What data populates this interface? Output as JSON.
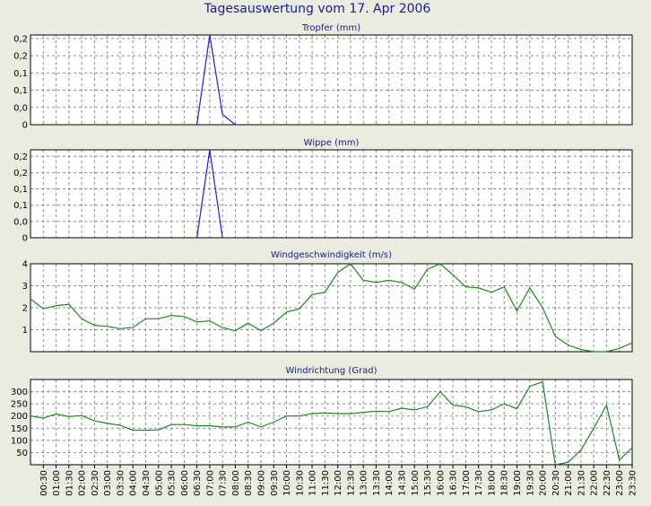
{
  "title": "Tagesauswertung vom 17. Apr 2006",
  "colors": {
    "background": "#e9ecdf",
    "rain": "#1f1fd0",
    "wind": "#1a8a1a"
  },
  "x_labels": [
    "00:30",
    "01:00",
    "01:30",
    "02:00",
    "02:30",
    "03:00",
    "03:30",
    "04:00",
    "04:30",
    "05:00",
    "05:30",
    "06:00",
    "06:30",
    "07:00",
    "07:30",
    "08:00",
    "08:30",
    "09:00",
    "09:30",
    "10:00",
    "10:30",
    "11:00",
    "11:30",
    "12:00",
    "12:30",
    "13:00",
    "13:30",
    "14:00",
    "14:30",
    "15:00",
    "15:30",
    "16:00",
    "16:30",
    "17:00",
    "17:30",
    "18:00",
    "18:30",
    "19:00",
    "19:30",
    "20:00",
    "20:30",
    "21:00",
    "21:30",
    "22:00",
    "22:30",
    "23:00",
    "23:30"
  ],
  "chart_data": [
    {
      "type": "line",
      "title": "Tropfer (mm)",
      "ylim": [
        0,
        0.26
      ],
      "ytick_values": [
        0,
        0.05,
        0.1,
        0.15,
        0.2,
        0.25
      ],
      "ytick_labels": [
        "0",
        "0,0",
        "0,1",
        "0,1",
        "0,2",
        "0,2"
      ],
      "series": [
        {
          "color": "#1f1fd0",
          "x": [
            "06:30",
            "07:00",
            "07:30",
            "08:00"
          ],
          "y": [
            0,
            0.26,
            0.03,
            0
          ]
        }
      ]
    },
    {
      "type": "line",
      "title": "Wippe (mm)",
      "ylim": [
        0,
        0.27
      ],
      "ytick_values": [
        0,
        0.05,
        0.1,
        0.15,
        0.2,
        0.25
      ],
      "ytick_labels": [
        "0",
        "0,0",
        "0,1",
        "0,1",
        "0,2",
        "0,2"
      ],
      "series": [
        {
          "color": "#1f1fd0",
          "x": [
            "06:30",
            "07:00",
            "07:30"
          ],
          "y": [
            0,
            0.27,
            0
          ]
        }
      ]
    },
    {
      "type": "line",
      "title": "Windgeschwindigkeit (m/s)",
      "ylim": [
        0,
        4
      ],
      "ytick_values": [
        1,
        2,
        3,
        4
      ],
      "ytick_labels": [
        "1",
        "2",
        "3",
        "4"
      ],
      "series": [
        {
          "color": "#1a8a1a",
          "x": [
            "00:00",
            "00:30",
            "01:00",
            "01:30",
            "02:00",
            "02:30",
            "03:00",
            "03:30",
            "04:00",
            "04:30",
            "05:00",
            "05:30",
            "06:00",
            "06:30",
            "07:00",
            "07:30",
            "08:00",
            "08:30",
            "09:00",
            "09:30",
            "10:00",
            "10:30",
            "11:00",
            "11:30",
            "12:00",
            "12:30",
            "13:00",
            "13:30",
            "14:00",
            "14:30",
            "15:00",
            "15:30",
            "16:00",
            "16:30",
            "17:00",
            "17:30",
            "18:00",
            "18:30",
            "19:00",
            "19:30",
            "20:00",
            "20:30",
            "21:00",
            "21:30",
            "22:00",
            "22:30",
            "23:00",
            "23:30"
          ],
          "y": [
            2.4,
            1.95,
            2.1,
            2.15,
            1.5,
            1.2,
            1.15,
            1.05,
            1.1,
            1.5,
            1.5,
            1.65,
            1.6,
            1.35,
            1.4,
            1.1,
            0.95,
            1.3,
            0.95,
            1.3,
            1.8,
            1.95,
            2.6,
            2.7,
            3.6,
            4.0,
            3.25,
            3.15,
            3.25,
            3.15,
            2.85,
            3.75,
            4.0,
            3.5,
            2.95,
            2.9,
            2.7,
            2.95,
            1.85,
            2.9,
            2.0,
            0.7,
            0.3,
            0.1,
            0.0,
            0.0,
            0.15,
            0.4
          ]
        }
      ]
    },
    {
      "type": "line",
      "title": "Windrichtung (Grad)",
      "ylim": [
        0,
        350
      ],
      "ytick_values": [
        50,
        100,
        150,
        200,
        250,
        300
      ],
      "ytick_labels": [
        "50",
        "100",
        "150",
        "200",
        "250",
        "300"
      ],
      "series": [
        {
          "color": "#1a8a1a",
          "x": [
            "00:00",
            "00:30",
            "01:00",
            "01:30",
            "02:00",
            "02:30",
            "03:00",
            "03:30",
            "04:00",
            "04:30",
            "05:00",
            "05:30",
            "06:00",
            "06:30",
            "07:00",
            "07:30",
            "08:00",
            "08:30",
            "09:00",
            "09:30",
            "10:00",
            "10:30",
            "11:00",
            "11:30",
            "12:00",
            "12:30",
            "13:00",
            "13:30",
            "14:00",
            "14:30",
            "15:00",
            "15:30",
            "16:00",
            "16:30",
            "17:00",
            "17:30",
            "18:00",
            "18:30",
            "19:00",
            "19:30",
            "20:00",
            "20:30",
            "21:00",
            "21:30",
            "22:00",
            "22:30",
            "23:00",
            "23:30"
          ],
          "y": [
            200,
            192,
            208,
            198,
            202,
            180,
            170,
            162,
            142,
            142,
            143,
            165,
            165,
            160,
            160,
            155,
            155,
            175,
            155,
            175,
            200,
            200,
            210,
            213,
            210,
            210,
            215,
            220,
            218,
            232,
            225,
            238,
            300,
            245,
            238,
            218,
            225,
            250,
            230,
            322,
            340,
            0,
            10,
            60,
            150,
            245,
            20,
            70
          ]
        }
      ]
    }
  ]
}
